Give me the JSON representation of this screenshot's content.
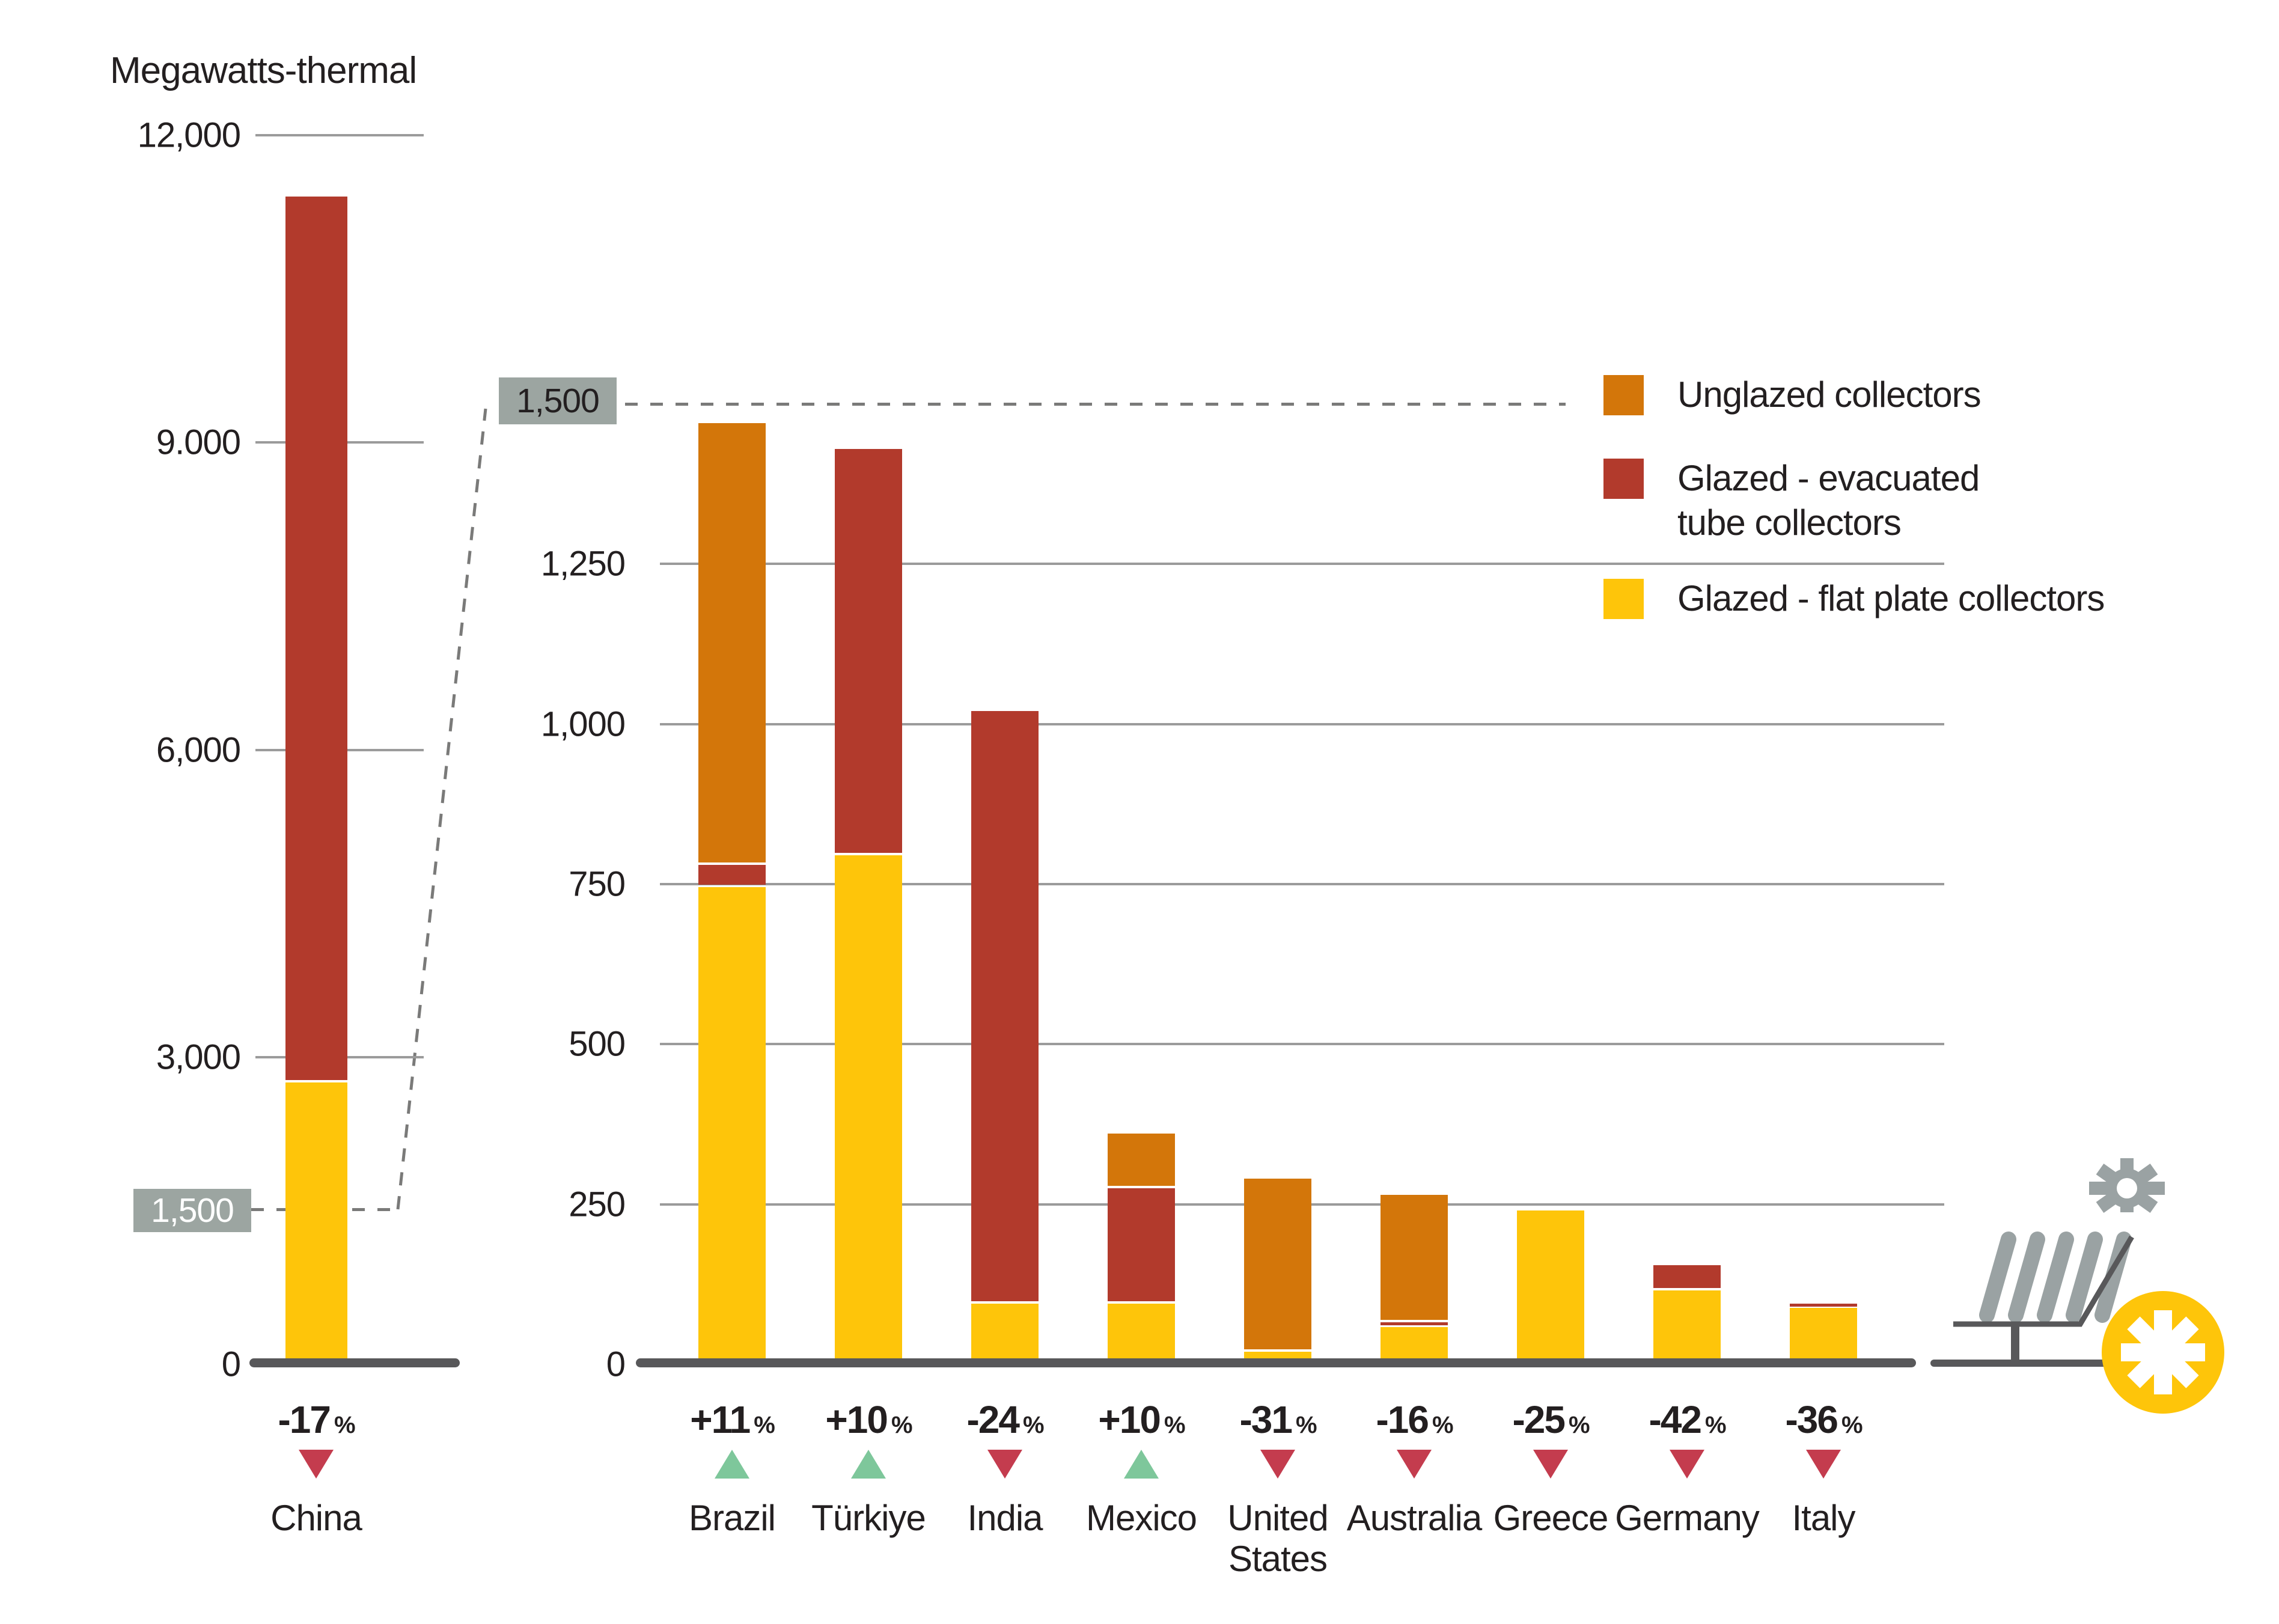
{
  "title": "Megawatts-thermal",
  "colors": {
    "unglazed": "#D3760A",
    "evacuated_tube": "#B23A2C",
    "flat_plate": "#FEC50A",
    "axis": "#58585A",
    "gridline": "#9B9B9B",
    "callout_bg": "#9CA5A1",
    "up_triangle": "#7EC79B",
    "down_triangle": "#C43C4E",
    "text": "#231F20",
    "icon_gray": "#9AA2A3"
  },
  "legend": {
    "items": [
      {
        "key": "unglazed",
        "label": "Unglazed collectors",
        "color": "#D3760A"
      },
      {
        "key": "evacuated_tube",
        "label": "Glazed - evacuated\ntube collectors",
        "color": "#B23A2C"
      },
      {
        "key": "flat_plate",
        "label": "Glazed - flat plate collectors",
        "color": "#FEC50A"
      }
    ]
  },
  "chart_data": {
    "type": "bar",
    "stacked": true,
    "unit": "Megawatts-thermal",
    "percent_suffix": "%",
    "series_order": [
      "flat_plate",
      "evacuated_tube",
      "unglazed"
    ],
    "series_names": {
      "flat_plate": "Glazed - flat plate collectors",
      "evacuated_tube": "Glazed - evacuated tube collectors",
      "unglazed": "Unglazed collectors"
    },
    "panels": [
      {
        "id": "china",
        "ylim": [
          0,
          12000
        ],
        "grid": "on",
        "yticks": [
          {
            "v": 12000,
            "label": "12,000"
          },
          {
            "v": 9000,
            "label": "9.000"
          },
          {
            "v": 6000,
            "label": "6,000"
          },
          {
            "v": 3000,
            "label": "3,000"
          },
          {
            "v": 0,
            "label": "0"
          }
        ],
        "reference_line": {
          "v": 1500,
          "label": "1,500"
        },
        "bars": [
          {
            "category": "China",
            "label_lines": [
              "China"
            ],
            "change_pct": "-17",
            "direction": "down",
            "flat_plate": 2750,
            "evacuated_tube": 8650,
            "unglazed": 0,
            "total": 11400
          }
        ]
      },
      {
        "id": "zoom",
        "ylim": [
          0,
          1500
        ],
        "grid": "on",
        "yticks": [
          {
            "v": 1250,
            "label": "1,250"
          },
          {
            "v": 1000,
            "label": "1,000"
          },
          {
            "v": 750,
            "label": "750"
          },
          {
            "v": 500,
            "label": "500"
          },
          {
            "v": 250,
            "label": "250"
          },
          {
            "v": 0,
            "label": "0"
          }
        ],
        "reference_line": {
          "v": 1500,
          "label": "1,500"
        },
        "bars": [
          {
            "category": "Brazil",
            "label_lines": [
              "Brazil"
            ],
            "change_pct": "+11",
            "direction": "up",
            "flat_plate": 745,
            "evacuated_tube": 35,
            "unglazed": 690,
            "total": 1470
          },
          {
            "category": "Türkiye",
            "label_lines": [
              "Türkiye"
            ],
            "change_pct": "+10",
            "direction": "up",
            "flat_plate": 795,
            "evacuated_tube": 635,
            "unglazed": 0,
            "total": 1430
          },
          {
            "category": "India",
            "label_lines": [
              "India"
            ],
            "change_pct": "-24",
            "direction": "down",
            "flat_plate": 95,
            "evacuated_tube": 925,
            "unglazed": 0,
            "total": 1020
          },
          {
            "category": "Mexico",
            "label_lines": [
              "Mexico"
            ],
            "change_pct": "+10",
            "direction": "up",
            "flat_plate": 95,
            "evacuated_tube": 180,
            "unglazed": 85,
            "total": 360
          },
          {
            "category": "United States",
            "label_lines": [
              "United",
              "States"
            ],
            "change_pct": "-31",
            "direction": "down",
            "flat_plate": 20,
            "evacuated_tube": 0,
            "unglazed": 270,
            "total": 290
          },
          {
            "category": "Australia",
            "label_lines": [
              "Australia"
            ],
            "change_pct": "-16",
            "direction": "down",
            "flat_plate": 58,
            "evacuated_tube": 8,
            "unglazed": 199,
            "total": 265
          },
          {
            "category": "Greece",
            "label_lines": [
              "Greece"
            ],
            "change_pct": "-25",
            "direction": "down",
            "flat_plate": 240,
            "evacuated_tube": 0,
            "unglazed": 0,
            "total": 240
          },
          {
            "category": "Germany",
            "label_lines": [
              "Germany"
            ],
            "change_pct": "-42",
            "direction": "down",
            "flat_plate": 115,
            "evacuated_tube": 40,
            "unglazed": 0,
            "total": 155
          },
          {
            "category": "Italy",
            "label_lines": [
              "Italy"
            ],
            "change_pct": "-36",
            "direction": "down",
            "flat_plate": 88,
            "evacuated_tube": 7,
            "unglazed": 0,
            "total": 95
          }
        ]
      }
    ]
  },
  "icon": {
    "name": "solar-thermal-collector-icon"
  }
}
